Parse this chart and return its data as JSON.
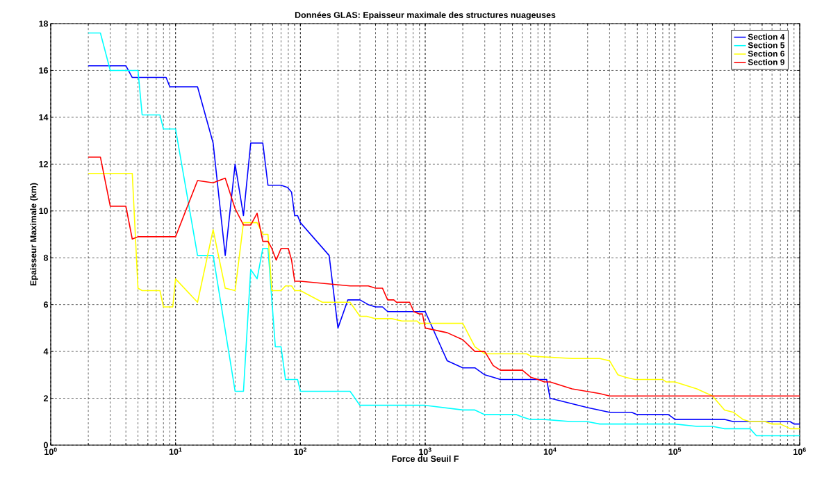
{
  "chart_data": {
    "type": "line",
    "title": "Données GLAS: Epaisseur maximale des structures nuageuses",
    "xlabel": "Force du Seuil F",
    "ylabel": "Epaisseur Maximale (km)",
    "log": "x",
    "grid": true,
    "legend": "top right",
    "marker": "none",
    "line_style": "solid",
    "xlim": [
      1,
      1000000
    ],
    "ylim": [
      0,
      18
    ],
    "xticks": [
      {
        "value": 1,
        "label": "10$^{0}$"
      },
      {
        "value": 10,
        "label": "10$^{1}$"
      },
      {
        "value": 100,
        "label": "10$^{2}$"
      },
      {
        "value": 1000,
        "label": "10$^{3}$"
      },
      {
        "value": 10000,
        "label": "10$^{4}$"
      },
      {
        "value": 100000,
        "label": "10$^{5}$"
      },
      {
        "value": 1000000,
        "label": "10$^{6}$"
      }
    ],
    "yticks": [
      0,
      2,
      4,
      6,
      8,
      10,
      12,
      14,
      16,
      18
    ],
    "series": [
      {
        "name": "Section 4",
        "color": "#0000ff",
        "x": [
          2,
          4,
          4.5,
          8.4,
          9,
          15,
          20,
          25,
          30,
          35,
          40,
          50,
          55,
          70,
          79,
          85,
          90,
          95,
          100,
          170,
          200,
          240,
          300,
          350,
          400,
          455,
          500,
          1000,
          1500,
          2000,
          2500,
          3000,
          3500,
          4000,
          9400,
          10000,
          20000,
          30000,
          45000,
          50000,
          89000,
          100000,
          250000,
          295000,
          840000,
          900000,
          1000000
        ],
        "values": [
          16.2,
          16.2,
          15.7,
          15.7,
          15.3,
          15.3,
          12.9,
          8.1,
          12.0,
          9.8,
          12.9,
          12.9,
          11.1,
          11.1,
          11.0,
          10.8,
          9.8,
          9.8,
          9.5,
          8.1,
          5.0,
          6.2,
          6.2,
          6.0,
          5.9,
          5.9,
          5.7,
          5.7,
          3.6,
          3.3,
          3.3,
          3.0,
          2.9,
          2.8,
          2.8,
          2.0,
          1.6,
          1.4,
          1.4,
          1.3,
          1.3,
          1.1,
          1.1,
          1.0,
          1.0,
          0.9,
          0.9
        ]
      },
      {
        "name": "Section 5",
        "color": "#00ffff",
        "x": [
          2,
          2.5,
          3,
          5,
          5.4,
          7.5,
          8,
          10,
          15,
          20,
          30,
          35,
          40,
          45,
          50,
          55,
          63,
          70,
          76,
          95,
          100,
          250,
          300,
          1000,
          2000,
          2500,
          3000,
          5400,
          6000,
          6900,
          8700,
          15000,
          20000,
          25000,
          100000,
          150000,
          200000,
          250000,
          400000,
          450000,
          1000000
        ],
        "values": [
          17.6,
          17.6,
          16.0,
          16.0,
          14.1,
          14.1,
          13.5,
          13.5,
          8.1,
          8.1,
          2.3,
          2.3,
          7.5,
          7.1,
          8.4,
          8.4,
          4.2,
          4.2,
          2.8,
          2.8,
          2.3,
          2.3,
          1.7,
          1.7,
          1.5,
          1.5,
          1.3,
          1.3,
          1.2,
          1.1,
          1.1,
          1.0,
          1.0,
          0.9,
          0.9,
          0.8,
          0.8,
          0.7,
          0.7,
          0.4,
          0.4
        ]
      },
      {
        "name": "Section 6",
        "color": "#ffff00",
        "x": [
          2,
          4.5,
          5,
          5.4,
          7.5,
          8,
          9.5,
          10,
          15,
          20,
          25,
          30,
          35,
          40,
          45,
          50,
          55,
          59,
          70,
          76,
          85,
          90,
          100,
          150,
          250,
          300,
          340,
          400,
          540,
          650,
          860,
          900,
          2000,
          2500,
          3000,
          6500,
          7000,
          15000,
          25000,
          30000,
          35000,
          40000,
          48000,
          80000,
          85000,
          100000,
          150000,
          200000,
          250000,
          295000,
          350000,
          400000,
          530000,
          600000,
          700000,
          840000,
          1000000
        ],
        "values": [
          11.6,
          11.6,
          6.7,
          6.6,
          6.6,
          5.9,
          5.9,
          7.1,
          6.1,
          9.2,
          6.7,
          6.6,
          9.5,
          9.5,
          9.5,
          9.0,
          9.0,
          6.6,
          6.6,
          6.8,
          6.8,
          6.6,
          6.6,
          6.1,
          6.1,
          5.5,
          5.5,
          5.4,
          5.4,
          5.3,
          5.3,
          5.2,
          5.2,
          4.2,
          3.9,
          3.9,
          3.8,
          3.7,
          3.7,
          3.6,
          3.0,
          2.9,
          2.8,
          2.8,
          2.7,
          2.7,
          2.4,
          2.1,
          1.5,
          1.4,
          1.1,
          1.0,
          1.0,
          0.9,
          0.9,
          0.7,
          0.7
        ]
      },
      {
        "name": "Section 9",
        "color": "#ff0000",
        "x": [
          2,
          2.5,
          3,
          4,
          4.5,
          5,
          10,
          15,
          20,
          25,
          30,
          35,
          40,
          45,
          50,
          55,
          59,
          64,
          70,
          80,
          85,
          90,
          100,
          250,
          350,
          400,
          455,
          500,
          560,
          590,
          750,
          810,
          900,
          950,
          1000,
          1500,
          2000,
          2500,
          3000,
          3500,
          4000,
          5000,
          5500,
          6000,
          7000,
          8000,
          9000,
          10000,
          15000,
          25000,
          30000,
          1000000
        ],
        "values": [
          12.3,
          12.3,
          10.2,
          10.2,
          8.8,
          8.9,
          8.9,
          11.3,
          11.2,
          11.4,
          10.1,
          9.4,
          9.4,
          9.9,
          8.7,
          8.7,
          8.4,
          7.9,
          8.4,
          8.4,
          7.9,
          7.0,
          7.0,
          6.8,
          6.8,
          6.7,
          6.7,
          6.2,
          6.2,
          6.1,
          6.1,
          5.7,
          5.6,
          5.6,
          5.0,
          4.8,
          4.5,
          4.0,
          4.0,
          3.4,
          3.2,
          3.2,
          3.2,
          3.2,
          2.9,
          2.8,
          2.7,
          2.7,
          2.4,
          2.2,
          2.1,
          2.1
        ]
      }
    ]
  }
}
